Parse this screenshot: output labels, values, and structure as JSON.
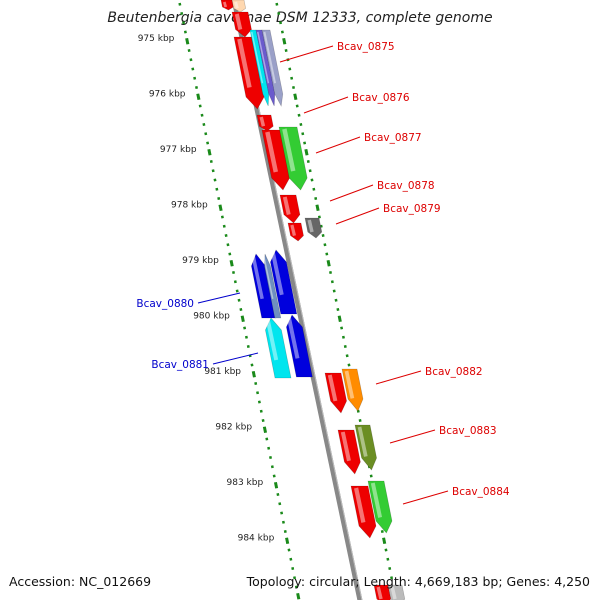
{
  "title": "Beutenbergia cavernae DSM 12333, complete genome",
  "footer": {
    "accession": "Accession: NC_012669",
    "summary": "Topology: circular; Length: 4,669,183 bp; Genes: 4,250"
  },
  "ticks": [
    "975 kbp",
    "976 kbp",
    "977 kbp",
    "978 kbp",
    "979 kbp",
    "980 kbp",
    "981 kbp",
    "982 kbp",
    "983 kbp",
    "984 kbp"
  ],
  "colors": {
    "backbone": "#888888",
    "tick": "#1a8a1a",
    "forward_label": "#dd0000",
    "reverse_label": "#0000cc",
    "red": "#ee0000",
    "green": "#33cc33",
    "olive": "#6b8e23",
    "orange": "#ff8c00",
    "blue": "#0000dd",
    "cyan": "#00e5ee",
    "grey": "#666666"
  },
  "genes": {
    "forward": [
      "Bcav_0875",
      "Bcav_0876",
      "Bcav_0877",
      "Bcav_0878",
      "Bcav_0879",
      "Bcav_0882",
      "Bcav_0883",
      "Bcav_0884"
    ],
    "reverse": [
      "Bcav_0880",
      "Bcav_0881"
    ]
  }
}
